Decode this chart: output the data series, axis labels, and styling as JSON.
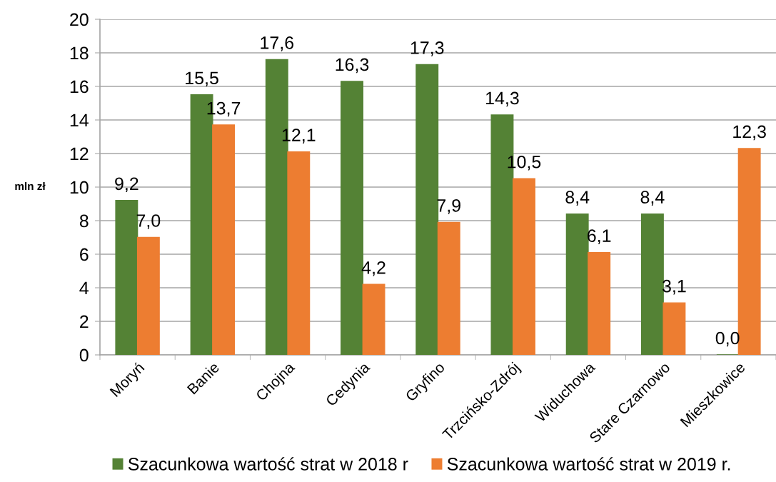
{
  "chart_data": {
    "type": "bar",
    "ylabel": "mln zł",
    "categories": [
      "Moryń",
      "Banie",
      "Chojna",
      "Cedynia",
      "Gryfino",
      "Trzcińsko-Zdrój",
      "Widuchowa",
      "Stare Czarnowo",
      "Mieszkowice"
    ],
    "series": [
      {
        "name": "Szacunkowa wartość strat w 2018 r",
        "color": "#548235",
        "values": [
          9.2,
          15.5,
          17.6,
          16.3,
          17.3,
          14.3,
          8.4,
          8.4,
          0.0
        ],
        "value_labels": [
          "9,2",
          "15,5",
          "17,6",
          "16,3",
          "17,3",
          "14,3",
          "8,4",
          "8,4",
          "0,0"
        ]
      },
      {
        "name": "Szacunkowa wartość strat w 2019 r.",
        "color": "#ED7D31",
        "values": [
          7.0,
          13.7,
          12.1,
          4.2,
          7.9,
          10.5,
          6.1,
          3.1,
          12.3
        ],
        "value_labels": [
          "7,0",
          "13,7",
          "12,1",
          "4,2",
          "7,9",
          "10,5",
          "6,1",
          "3,1",
          "12,3"
        ]
      }
    ],
    "ylim": [
      0,
      20
    ],
    "yticks": [
      0,
      2,
      4,
      6,
      8,
      10,
      12,
      14,
      16,
      18,
      20
    ],
    "grid": "y",
    "legend": "bottom"
  }
}
